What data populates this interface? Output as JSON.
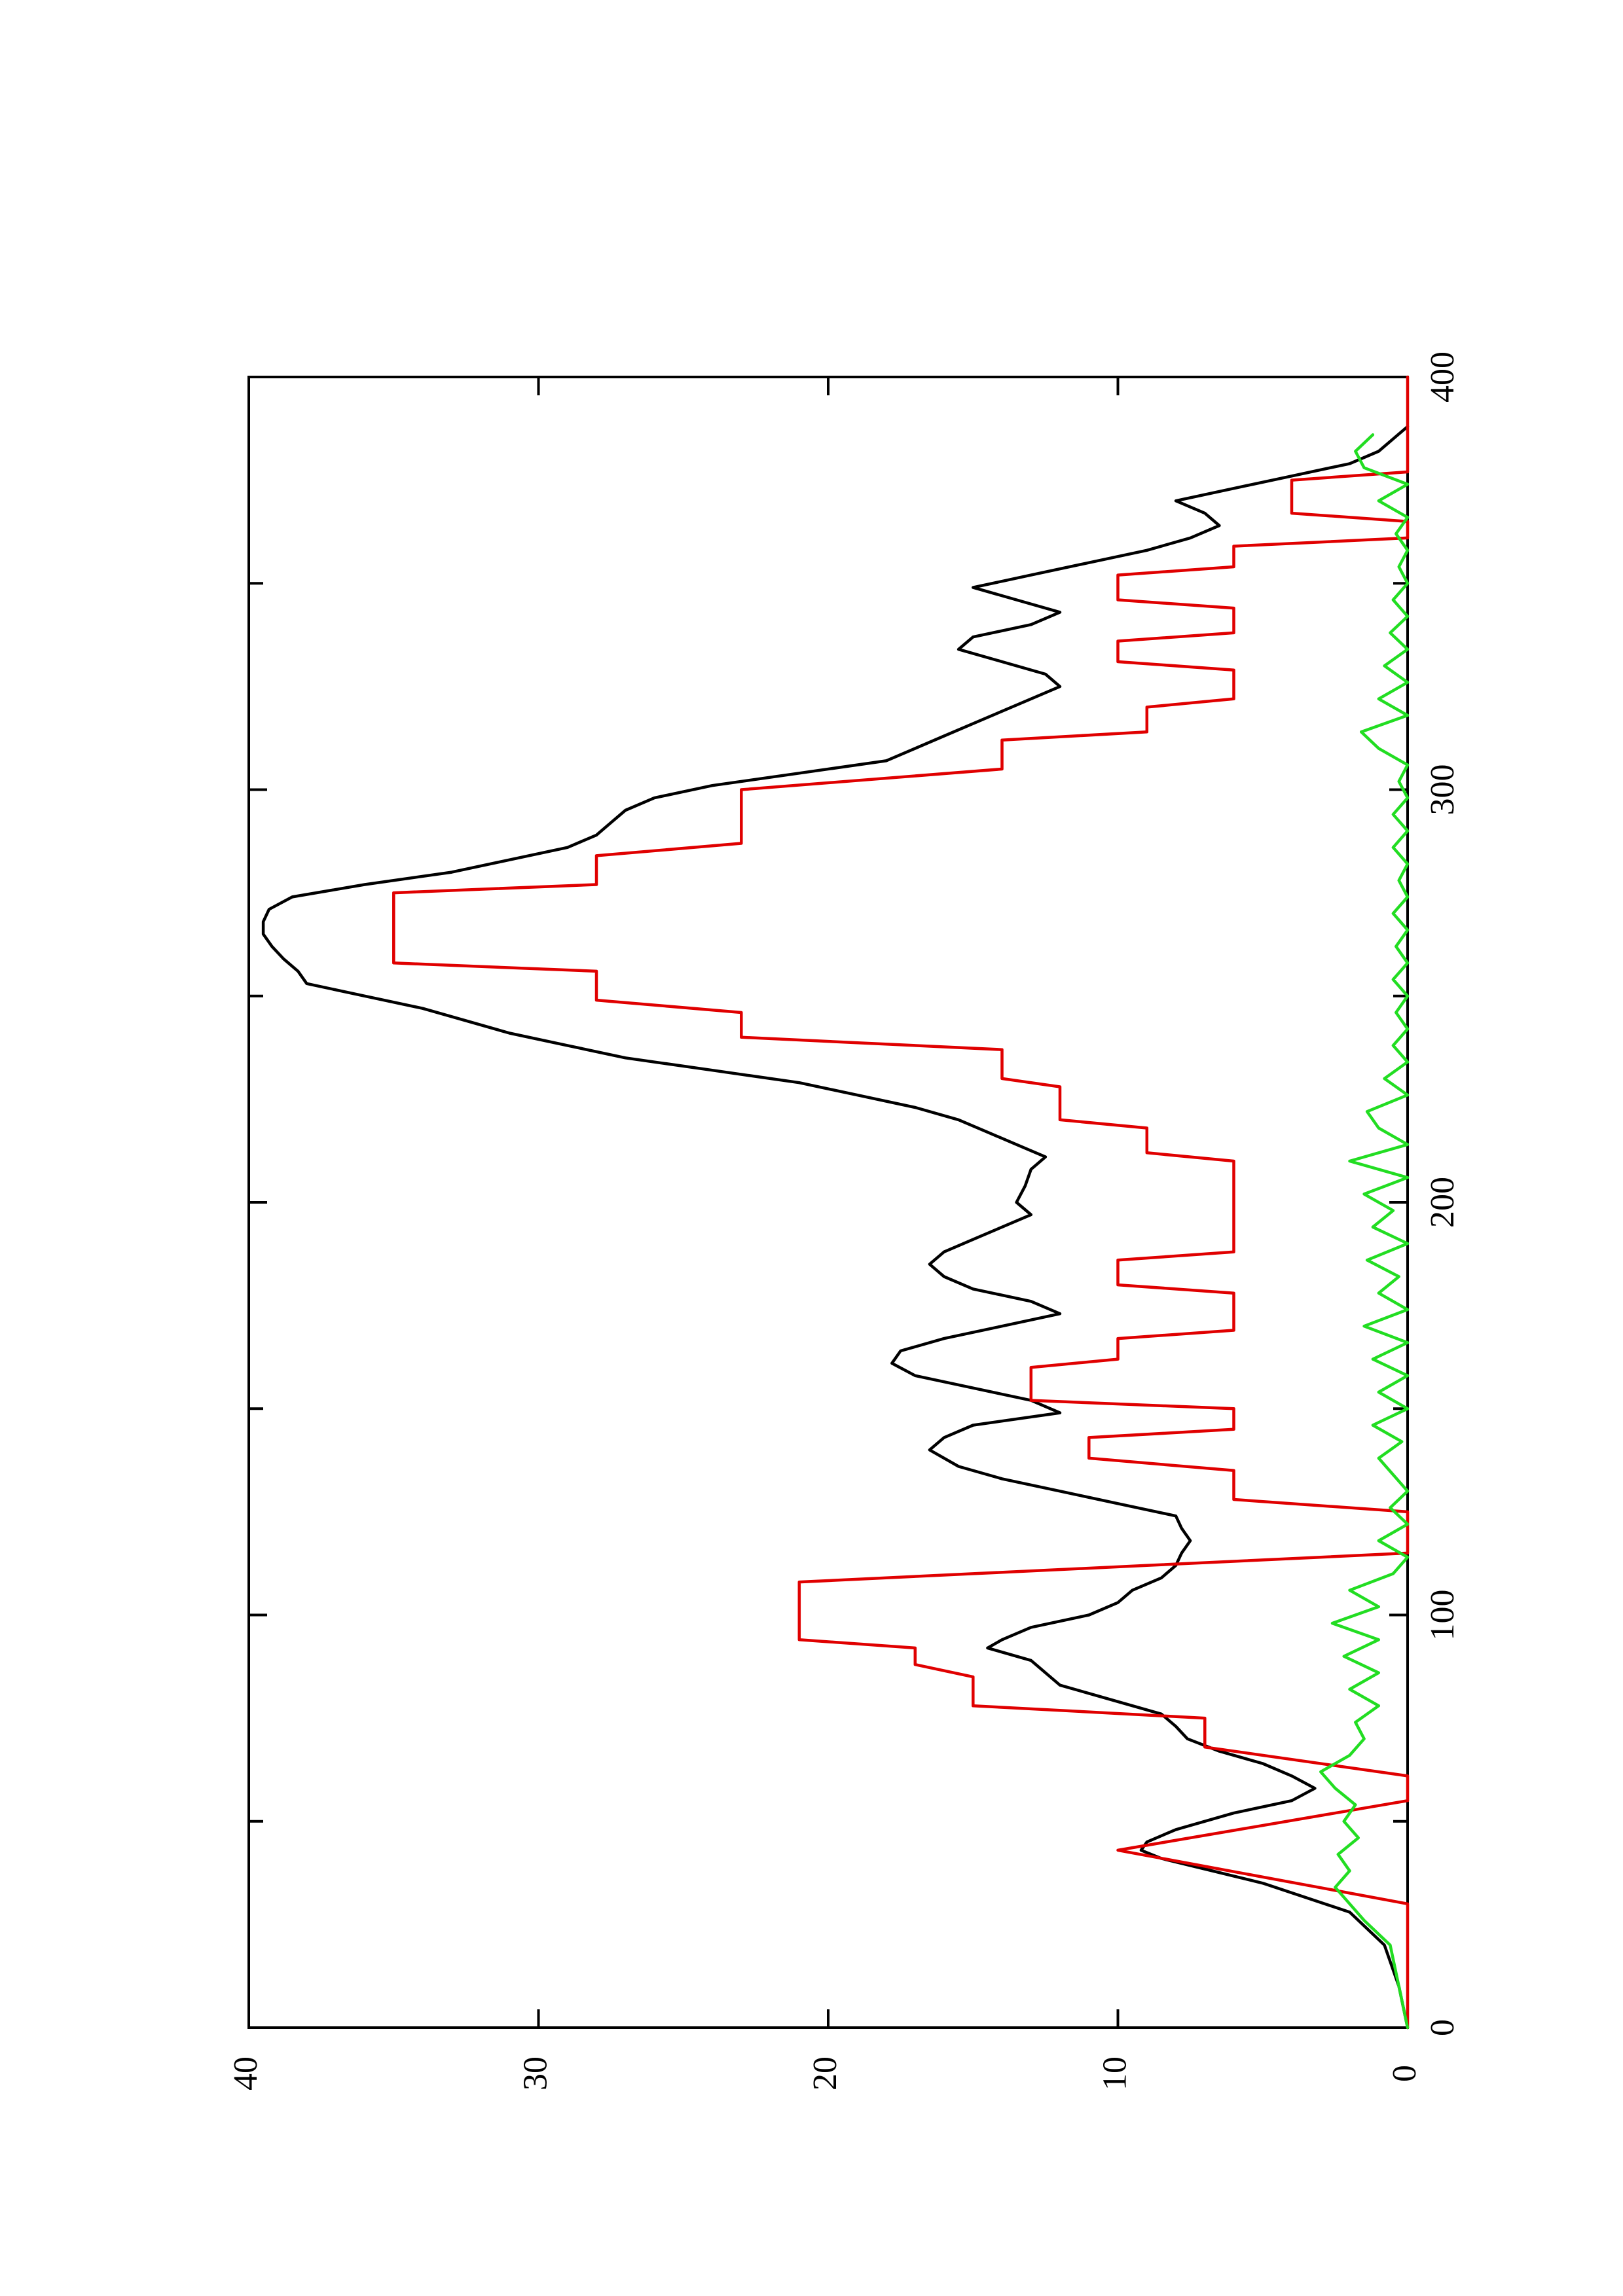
{
  "chart_data": {
    "type": "line",
    "orientation": "rotated-90-ccw",
    "title": "",
    "xlabel": "",
    "ylabel": "",
    "xlim": [
      0,
      400
    ],
    "ylim": [
      0,
      40
    ],
    "x_ticks": [
      0,
      100,
      200,
      300,
      400
    ],
    "y_ticks": [
      0,
      10,
      20,
      30,
      40
    ],
    "x_minor_ticks": [
      50,
      150,
      250,
      350
    ],
    "grid": false,
    "legend": "none",
    "series": [
      {
        "color": "#000000",
        "points": [
          [
            0,
            0
          ],
          [
            10,
            0.3
          ],
          [
            20,
            0.8
          ],
          [
            28,
            2
          ],
          [
            35,
            5
          ],
          [
            41,
            8.5
          ],
          [
            43,
            9.2
          ],
          [
            45,
            9
          ],
          [
            48,
            8
          ],
          [
            52,
            6
          ],
          [
            55,
            4
          ],
          [
            58,
            3.2
          ],
          [
            61,
            4
          ],
          [
            64,
            5
          ],
          [
            67,
            6.5
          ],
          [
            70,
            7.6
          ],
          [
            73,
            8
          ],
          [
            76,
            8.5
          ],
          [
            78,
            9.5
          ],
          [
            81,
            11
          ],
          [
            83,
            12
          ],
          [
            86,
            12.5
          ],
          [
            89,
            13
          ],
          [
            92,
            14.5
          ],
          [
            94,
            14
          ],
          [
            97,
            13
          ],
          [
            100,
            11
          ],
          [
            103,
            10
          ],
          [
            106,
            9.5
          ],
          [
            109,
            8.5
          ],
          [
            112,
            8
          ],
          [
            115,
            7.8
          ],
          [
            118,
            7.5
          ],
          [
            121,
            7.8
          ],
          [
            124,
            8
          ],
          [
            127,
            10
          ],
          [
            130,
            12
          ],
          [
            133,
            14
          ],
          [
            136,
            15.5
          ],
          [
            140,
            16.5
          ],
          [
            143,
            16
          ],
          [
            146,
            15
          ],
          [
            149,
            12
          ],
          [
            152,
            13
          ],
          [
            155,
            15
          ],
          [
            158,
            17
          ],
          [
            161,
            17.8
          ],
          [
            164,
            17.5
          ],
          [
            167,
            16
          ],
          [
            170,
            14
          ],
          [
            173,
            12
          ],
          [
            176,
            13
          ],
          [
            179,
            15
          ],
          [
            182,
            16
          ],
          [
            185,
            16.5
          ],
          [
            188,
            16
          ],
          [
            191,
            15
          ],
          [
            194,
            14
          ],
          [
            197,
            13
          ],
          [
            200,
            13.5
          ],
          [
            204,
            13.2
          ],
          [
            208,
            13
          ],
          [
            211,
            12.5
          ],
          [
            214,
            13.5
          ],
          [
            217,
            14.5
          ],
          [
            220,
            15.5
          ],
          [
            223,
            17
          ],
          [
            226,
            19
          ],
          [
            229,
            21
          ],
          [
            232,
            24
          ],
          [
            235,
            27
          ],
          [
            238,
            29
          ],
          [
            241,
            31
          ],
          [
            244,
            32.5
          ],
          [
            247,
            34
          ],
          [
            250,
            36
          ],
          [
            253,
            38
          ],
          [
            256,
            38.3
          ],
          [
            259,
            38.8
          ],
          [
            262,
            39.2
          ],
          [
            265,
            39.5
          ],
          [
            268,
            39.5
          ],
          [
            271,
            39.3
          ],
          [
            274,
            38.5
          ],
          [
            277,
            36
          ],
          [
            280,
            33
          ],
          [
            283,
            31
          ],
          [
            286,
            29
          ],
          [
            289,
            28
          ],
          [
            292,
            27.5
          ],
          [
            295,
            27
          ],
          [
            298,
            26
          ],
          [
            301,
            24
          ],
          [
            304,
            21
          ],
          [
            307,
            18
          ],
          [
            310,
            17
          ],
          [
            313,
            16
          ],
          [
            316,
            15
          ],
          [
            319,
            14
          ],
          [
            322,
            13
          ],
          [
            325,
            12
          ],
          [
            328,
            12.5
          ],
          [
            331,
            14
          ],
          [
            334,
            15.5
          ],
          [
            337,
            15
          ],
          [
            340,
            13
          ],
          [
            343,
            12
          ],
          [
            346,
            13.5
          ],
          [
            349,
            15
          ],
          [
            352,
            13
          ],
          [
            355,
            11
          ],
          [
            358,
            9
          ],
          [
            361,
            7.5
          ],
          [
            364,
            6.5
          ],
          [
            367,
            7
          ],
          [
            370,
            8
          ],
          [
            373,
            6
          ],
          [
            376,
            4
          ],
          [
            379,
            2
          ],
          [
            382,
            1
          ],
          [
            385,
            0.5
          ],
          [
            388,
            0
          ]
        ]
      },
      {
        "color": "#e00000",
        "points": [
          [
            0,
            0
          ],
          [
            30,
            0
          ],
          [
            43,
            10
          ],
          [
            55,
            0
          ],
          [
            61,
            0
          ],
          [
            68,
            7
          ],
          [
            75,
            7
          ],
          [
            78,
            15
          ],
          [
            85,
            15
          ],
          [
            88,
            17
          ],
          [
            92,
            17
          ],
          [
            94,
            21
          ],
          [
            108,
            21
          ],
          [
            110,
            15
          ],
          [
            112,
            9
          ],
          [
            115,
            0
          ],
          [
            125,
            0
          ],
          [
            128,
            6
          ],
          [
            135,
            6
          ],
          [
            138,
            11
          ],
          [
            143,
            11
          ],
          [
            145,
            6
          ],
          [
            150,
            6
          ],
          [
            152,
            13
          ],
          [
            160,
            13
          ],
          [
            162,
            10
          ],
          [
            167,
            10
          ],
          [
            169,
            6
          ],
          [
            178,
            6
          ],
          [
            180,
            10
          ],
          [
            186,
            10
          ],
          [
            188,
            6
          ],
          [
            210,
            6
          ],
          [
            212,
            9
          ],
          [
            218,
            9
          ],
          [
            220,
            12
          ],
          [
            228,
            12
          ],
          [
            230,
            14
          ],
          [
            237,
            14
          ],
          [
            240,
            23
          ],
          [
            246,
            23
          ],
          [
            249,
            28
          ],
          [
            256,
            28
          ],
          [
            258,
            35
          ],
          [
            275,
            35
          ],
          [
            277,
            28
          ],
          [
            284,
            28
          ],
          [
            287,
            23
          ],
          [
            300,
            23
          ],
          [
            305,
            14
          ],
          [
            312,
            14
          ],
          [
            314,
            9
          ],
          [
            320,
            9
          ],
          [
            322,
            6
          ],
          [
            329,
            6
          ],
          [
            331,
            10
          ],
          [
            336,
            10
          ],
          [
            338,
            6
          ],
          [
            344,
            6
          ],
          [
            346,
            10
          ],
          [
            352,
            10
          ],
          [
            354,
            6
          ],
          [
            359,
            6
          ],
          [
            361,
            0
          ],
          [
            365,
            0
          ],
          [
            367,
            4
          ],
          [
            375,
            4
          ],
          [
            377,
            0
          ],
          [
            400,
            0
          ]
        ]
      },
      {
        "color": "#22dd22",
        "points": [
          [
            0,
            0
          ],
          [
            10,
            0.3
          ],
          [
            20,
            0.6
          ],
          [
            26,
            1.5
          ],
          [
            30,
            2
          ],
          [
            34,
            2.5
          ],
          [
            38,
            2
          ],
          [
            42,
            2.4
          ],
          [
            46,
            1.7
          ],
          [
            50,
            2.2
          ],
          [
            54,
            1.8
          ],
          [
            58,
            2.5
          ],
          [
            62,
            3
          ],
          [
            66,
            2
          ],
          [
            70,
            1.5
          ],
          [
            74,
            1.8
          ],
          [
            78,
            1
          ],
          [
            82,
            2
          ],
          [
            86,
            1
          ],
          [
            90,
            2.2
          ],
          [
            94,
            1
          ],
          [
            98,
            2.6
          ],
          [
            102,
            1
          ],
          [
            106,
            2
          ],
          [
            110,
            0.5
          ],
          [
            114,
            0
          ],
          [
            118,
            1
          ],
          [
            122,
            0
          ],
          [
            126,
            0.6
          ],
          [
            130,
            0
          ],
          [
            134,
            0.5
          ],
          [
            138,
            1
          ],
          [
            142,
            0.2
          ],
          [
            146,
            1.2
          ],
          [
            150,
            0
          ],
          [
            154,
            1
          ],
          [
            158,
            0
          ],
          [
            162,
            1.2
          ],
          [
            166,
            0
          ],
          [
            170,
            1.5
          ],
          [
            174,
            0
          ],
          [
            178,
            1
          ],
          [
            182,
            0.3
          ],
          [
            186,
            1.4
          ],
          [
            190,
            0
          ],
          [
            194,
            1.2
          ],
          [
            198,
            0.5
          ],
          [
            202,
            1.5
          ],
          [
            206,
            0
          ],
          [
            210,
            2
          ],
          [
            214,
            0
          ],
          [
            218,
            1
          ],
          [
            222,
            1.4
          ],
          [
            226,
            0
          ],
          [
            230,
            0.8
          ],
          [
            234,
            0
          ],
          [
            238,
            0.5
          ],
          [
            242,
            0
          ],
          [
            246,
            0.4
          ],
          [
            250,
            0
          ],
          [
            254,
            0.5
          ],
          [
            258,
            0
          ],
          [
            262,
            0.4
          ],
          [
            266,
            0
          ],
          [
            270,
            0.5
          ],
          [
            274,
            0
          ],
          [
            278,
            0.3
          ],
          [
            282,
            0
          ],
          [
            286,
            0.5
          ],
          [
            290,
            0
          ],
          [
            294,
            0.5
          ],
          [
            298,
            0
          ],
          [
            302,
            0.3
          ],
          [
            306,
            0
          ],
          [
            310,
            1
          ],
          [
            314,
            1.6
          ],
          [
            318,
            0
          ],
          [
            322,
            1
          ],
          [
            326,
            0
          ],
          [
            330,
            0.8
          ],
          [
            334,
            0
          ],
          [
            338,
            0.6
          ],
          [
            342,
            0
          ],
          [
            346,
            0.5
          ],
          [
            350,
            0
          ],
          [
            354,
            0.3
          ],
          [
            358,
            0
          ],
          [
            362,
            0.4
          ],
          [
            366,
            0
          ],
          [
            370,
            1
          ],
          [
            374,
            0
          ],
          [
            378,
            1.5
          ],
          [
            382,
            1.8
          ],
          [
            386,
            1.2
          ]
        ]
      }
    ]
  }
}
